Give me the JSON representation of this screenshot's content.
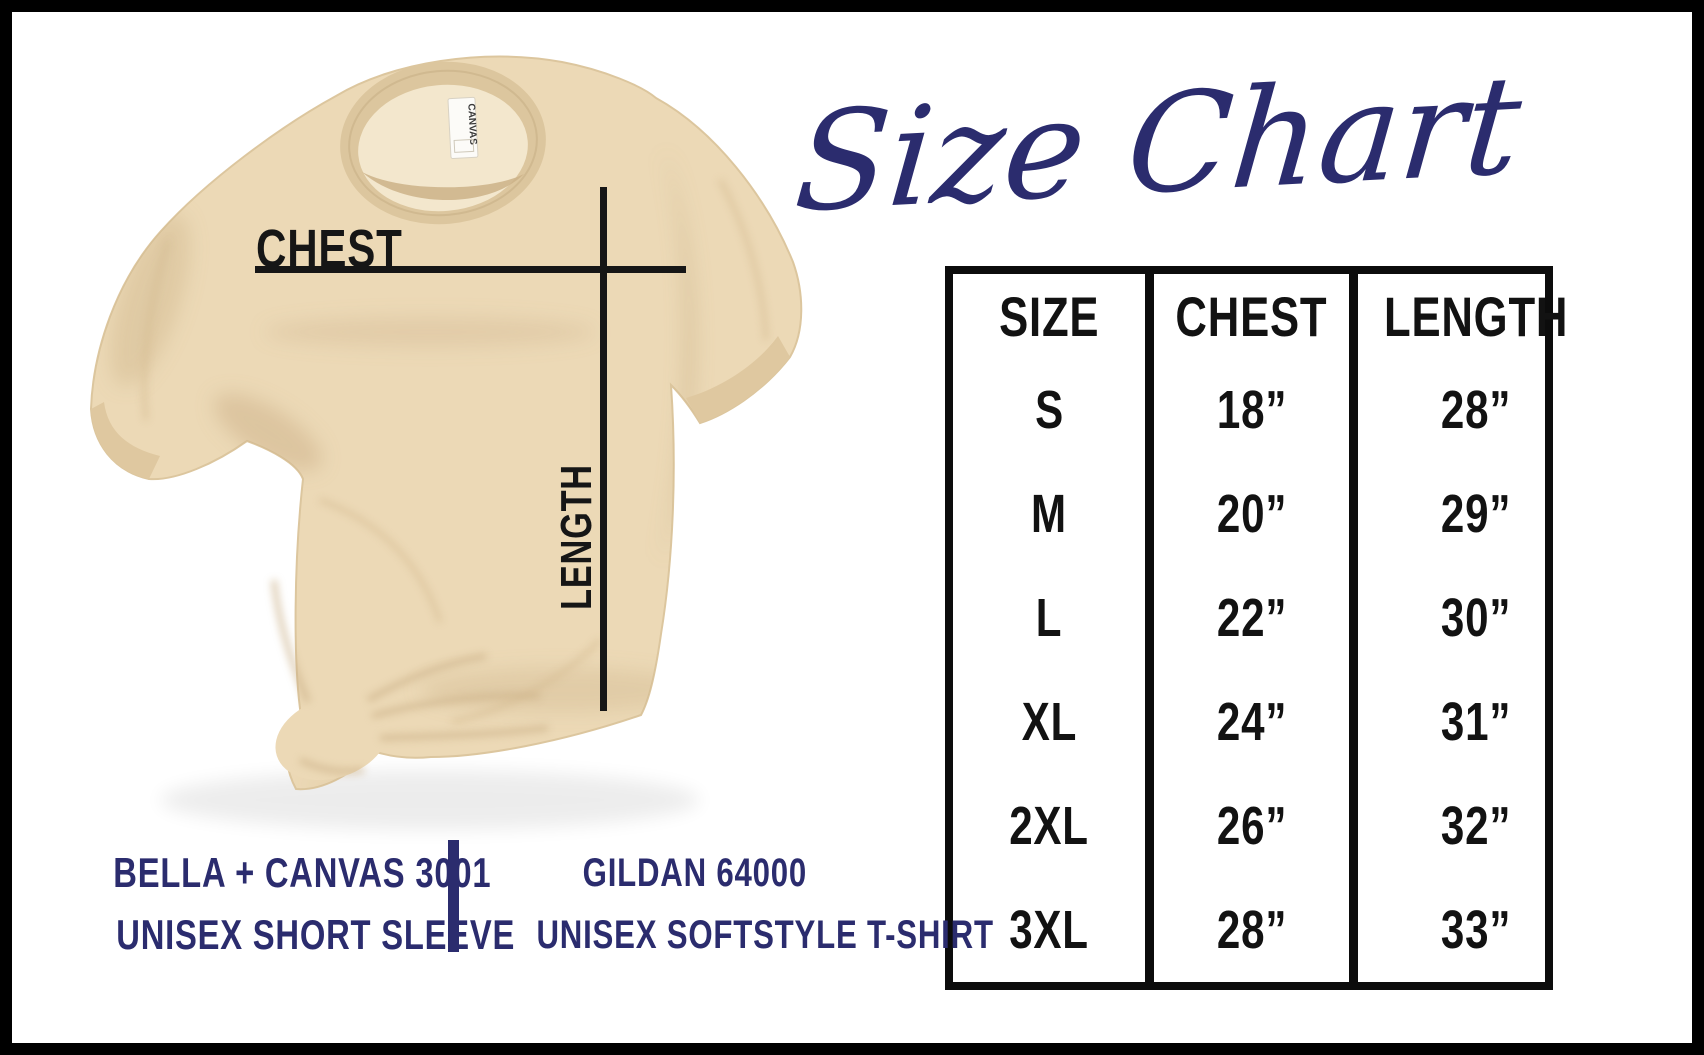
{
  "colors": {
    "navy": "#2b2c6e",
    "line_black": "#161616",
    "shirt_tan": "#ecd9b6",
    "shirt_shadow": "#c9ae85",
    "table_border": "#0c0c0c",
    "background": "#ffffff",
    "frame": "#000000"
  },
  "title": {
    "text": "Size Chart"
  },
  "shirt": {
    "chest_label": "CHEST",
    "length_label": "LENGTH",
    "collar_tag": "CANVAS"
  },
  "chart_data": {
    "type": "table",
    "title": "Size Chart",
    "columns": [
      "SIZE",
      "CHEST",
      "LENGTH"
    ],
    "rows": [
      [
        "S",
        "18”",
        "28”"
      ],
      [
        "M",
        "20”",
        "29”"
      ],
      [
        "L",
        "22”",
        "30”"
      ],
      [
        "XL",
        "24”",
        "31”"
      ],
      [
        "2XL",
        "26”",
        "32”"
      ],
      [
        "3XL",
        "28”",
        "33”"
      ]
    ]
  },
  "footer": {
    "left_line1": "BELLA + CANVAS 3001",
    "left_line2": "UNISEX SHORT SLEEVE",
    "right_line1": "GILDAN 64000",
    "right_line2": "UNISEX SOFTSTYLE T-SHIRT"
  }
}
